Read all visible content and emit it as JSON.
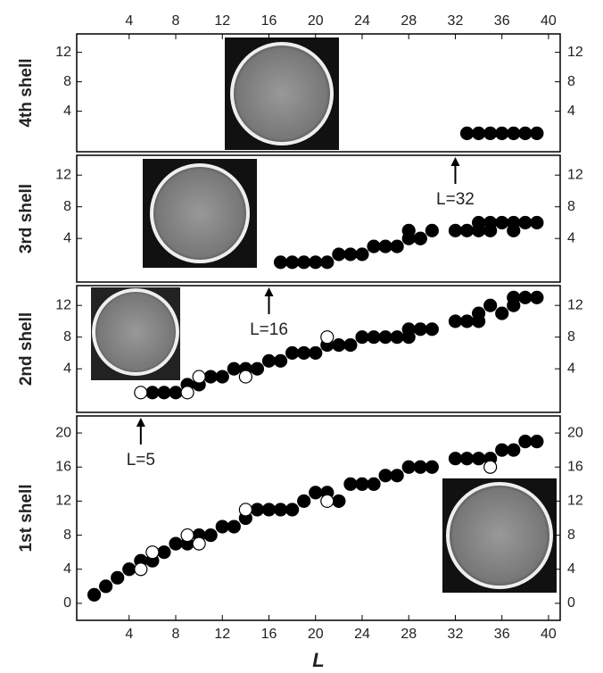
{
  "chart_data": [
    {
      "type": "scatter",
      "ylabel": "4th shell",
      "xlim": [
        -0.5,
        41
      ],
      "xticks": [
        4,
        8,
        12,
        16,
        20,
        24,
        28,
        32,
        36,
        40
      ],
      "ylim": [
        -1.5,
        14.5
      ],
      "yticks": [
        4,
        8,
        12
      ],
      "series": [
        {
          "marker": "filled",
          "color": "#000000",
          "x": [
            33,
            34,
            35,
            36,
            37,
            38,
            39
          ],
          "values": [
            1,
            1,
            1,
            1,
            1,
            1,
            1
          ]
        }
      ]
    },
    {
      "type": "scatter",
      "ylabel": "3rd shell",
      "xlim": [
        -0.5,
        41
      ],
      "ylim": [
        -1.5,
        14.5
      ],
      "yticks": [
        4,
        8,
        12
      ],
      "annotations": [
        {
          "text": "L=32",
          "x": 32
        }
      ],
      "series": [
        {
          "marker": "filled",
          "color": "#000000",
          "x": [
            17,
            18,
            19,
            20,
            21,
            22,
            23,
            24,
            25,
            26,
            27,
            28,
            28,
            29,
            29,
            30,
            32,
            33,
            34,
            34,
            35,
            35,
            36,
            37,
            37,
            38,
            39
          ],
          "values": [
            1,
            1,
            1,
            1,
            1,
            2,
            2,
            2,
            3,
            3,
            3,
            4,
            5,
            4,
            4,
            5,
            5,
            5,
            5,
            6,
            6,
            5,
            6,
            6,
            5,
            6,
            6
          ]
        }
      ]
    },
    {
      "type": "scatter",
      "ylabel": "2nd shell",
      "xlim": [
        -0.5,
        41
      ],
      "ylim": [
        -1.5,
        14.5
      ],
      "yticks": [
        4,
        8,
        12
      ],
      "annotations": [
        {
          "text": "L=16",
          "x": 16
        }
      ],
      "series": [
        {
          "marker": "filled",
          "color": "#000000",
          "x": [
            6,
            7,
            8,
            9,
            10,
            11,
            12,
            13,
            14,
            15,
            16,
            17,
            18,
            19,
            20,
            21,
            22,
            23,
            24,
            25,
            26,
            27,
            28,
            28,
            29,
            30,
            32,
            33,
            34,
            34,
            35,
            36,
            37,
            37,
            38,
            39
          ],
          "values": [
            1,
            1,
            1,
            2,
            2,
            3,
            3,
            4,
            4,
            4,
            5,
            5,
            6,
            6,
            6,
            7,
            7,
            7,
            8,
            8,
            8,
            8,
            8,
            9,
            9,
            9,
            10,
            10,
            10,
            11,
            12,
            11,
            12,
            13,
            13,
            13
          ]
        },
        {
          "marker": "open",
          "color": "#000000",
          "x": [
            5,
            9,
            10,
            14,
            21
          ],
          "values": [
            1,
            1,
            3,
            3,
            8
          ]
        }
      ]
    },
    {
      "type": "scatter",
      "ylabel": "1st shell",
      "xlabel": "L",
      "xlim": [
        -0.5,
        41
      ],
      "xticks": [
        4,
        8,
        12,
        16,
        20,
        24,
        28,
        32,
        36,
        40
      ],
      "ylim": [
        -2,
        22
      ],
      "yticks": [
        0,
        4,
        8,
        12,
        16,
        20
      ],
      "annotations": [
        {
          "text": "L=5",
          "x": 5
        }
      ],
      "series": [
        {
          "marker": "filled",
          "color": "#000000",
          "x": [
            1,
            2,
            3,
            4,
            5,
            6,
            7,
            8,
            9,
            10,
            11,
            12,
            13,
            14,
            15,
            16,
            17,
            18,
            19,
            20,
            21,
            22,
            23,
            24,
            25,
            26,
            27,
            28,
            29,
            30,
            32,
            33,
            34,
            35,
            36,
            37,
            38,
            39
          ],
          "values": [
            1,
            2,
            3,
            4,
            5,
            5,
            6,
            7,
            7,
            8,
            8,
            9,
            9,
            10,
            11,
            11,
            11,
            11,
            12,
            13,
            13,
            12,
            14,
            14,
            14,
            15,
            15,
            16,
            16,
            16,
            17,
            17,
            17,
            17,
            18,
            18,
            19,
            19
          ]
        },
        {
          "marker": "open",
          "color": "#000000",
          "x": [
            5,
            6,
            9,
            10,
            14,
            21,
            35
          ],
          "values": [
            4,
            6,
            8,
            7,
            11,
            12,
            16
          ]
        }
      ]
    }
  ]
}
